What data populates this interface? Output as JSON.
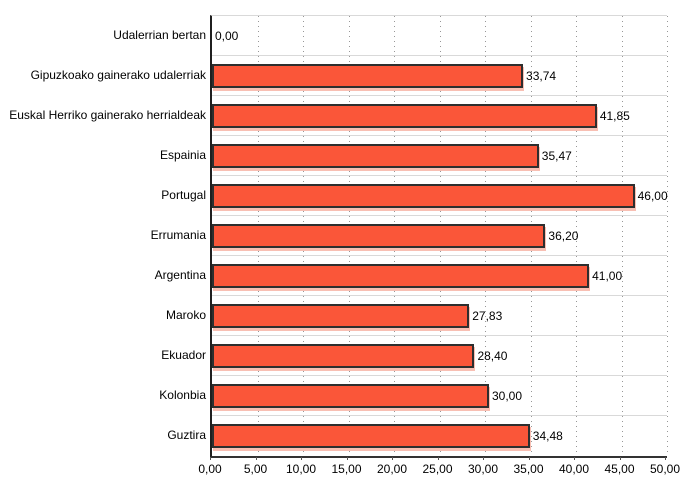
{
  "chart_data": {
    "type": "bar",
    "orientation": "horizontal",
    "title": "",
    "xlabel": "",
    "ylabel": "",
    "xlim": [
      0,
      50
    ],
    "grid": "vertical-dotted",
    "legend": "none",
    "categories": [
      "Udalerrian bertan",
      "Gipuzkoako gainerako udalerriak",
      "Euskal Herriko gainerako herrialdeak",
      "Espainia",
      "Portugal",
      "Errumania",
      "Argentina",
      "Maroko",
      "Ekuador",
      "Kolonbia",
      "Guztira"
    ],
    "values": [
      0.0,
      33.74,
      41.85,
      35.47,
      46.0,
      36.2,
      41.0,
      27.83,
      28.4,
      30.0,
      34.48
    ],
    "value_labels": [
      "0,00",
      "33,74",
      "41,85",
      "35,47",
      "46,00",
      "36,20",
      "41,00",
      "27,83",
      "28,40",
      "30,00",
      "34,48"
    ],
    "x_tick_values": [
      0,
      5,
      10,
      15,
      20,
      25,
      30,
      35,
      40,
      45,
      50
    ],
    "x_tick_labels": [
      "0,00",
      "5,00",
      "10,00",
      "15,00",
      "20,00",
      "25,00",
      "30,00",
      "35,00",
      "40,00",
      "45,00",
      "50,00"
    ],
    "colors": {
      "bar_fill": "#fa5639",
      "bar_border": "#2e2e2e",
      "bar_shadow": "#f28b75",
      "row_separator": "#d9d9d9",
      "gridline": "#979797",
      "axis": "#1f1f1f",
      "text": "#000000",
      "background": "#ffffff"
    }
  }
}
